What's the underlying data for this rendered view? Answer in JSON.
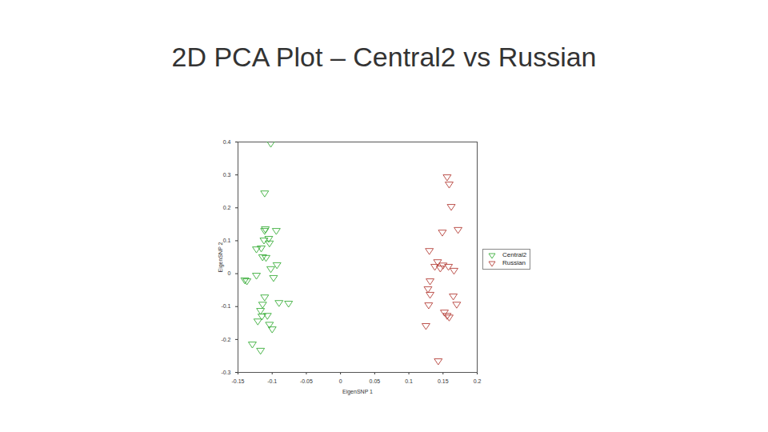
{
  "chart_data": {
    "type": "scatter",
    "title": "2D PCA Plot – Central2 vs Russian",
    "x_label": "EigenSNP 1",
    "y_label": "EigenSNP 2",
    "xlim": [
      -0.15,
      0.2
    ],
    "xticks": [
      -0.15,
      -0.1,
      -0.05,
      0,
      0.05,
      0.1,
      0.15,
      0.2
    ],
    "ylim": [
      -0.3,
      0.4
    ],
    "yticks": [
      -0.3,
      -0.2,
      -0.1,
      0,
      0.1,
      0.2,
      0.3,
      0.4
    ],
    "grid": false,
    "legend": "right",
    "series": [
      {
        "name": "Central2",
        "color": "#3aae3a",
        "marker": "triangle-down",
        "x": [
          -0.102,
          -0.111,
          -0.11,
          -0.111,
          -0.094,
          -0.105,
          -0.112,
          -0.123,
          -0.116,
          -0.104,
          -0.114,
          -0.109,
          -0.102,
          -0.093,
          -0.137,
          -0.123,
          -0.098,
          -0.111,
          -0.114,
          -0.09,
          -0.076,
          -0.117,
          -0.121,
          -0.107,
          -0.104,
          -0.115,
          -0.1,
          -0.129,
          -0.117,
          -0.14
        ],
        "values": [
          0.395,
          0.244,
          0.135,
          0.13,
          0.13,
          0.106,
          0.101,
          0.074,
          0.077,
          0.092,
          0.05,
          0.048,
          0.014,
          0.026,
          -0.023,
          -0.006,
          -0.013,
          -0.072,
          -0.094,
          -0.089,
          -0.091,
          -0.113,
          -0.145,
          -0.128,
          -0.155,
          -0.13,
          -0.169,
          -0.215,
          -0.234,
          -0.02
        ]
      },
      {
        "name": "Russian",
        "color": "#b5413a",
        "marker": "triangle-down",
        "x": [
          0.156,
          0.159,
          0.162,
          0.172,
          0.149,
          0.13,
          0.142,
          0.15,
          0.138,
          0.146,
          0.158,
          0.166,
          0.131,
          0.128,
          0.131,
          0.165,
          0.129,
          0.17,
          0.152,
          0.156,
          0.159,
          0.125,
          0.143
        ],
        "values": [
          0.293,
          0.271,
          0.203,
          0.133,
          0.125,
          0.069,
          0.035,
          0.025,
          0.021,
          0.016,
          0.021,
          0.009,
          -0.023,
          -0.047,
          -0.064,
          -0.069,
          -0.096,
          -0.094,
          -0.118,
          -0.128,
          -0.133,
          -0.159,
          -0.266
        ]
      }
    ]
  }
}
